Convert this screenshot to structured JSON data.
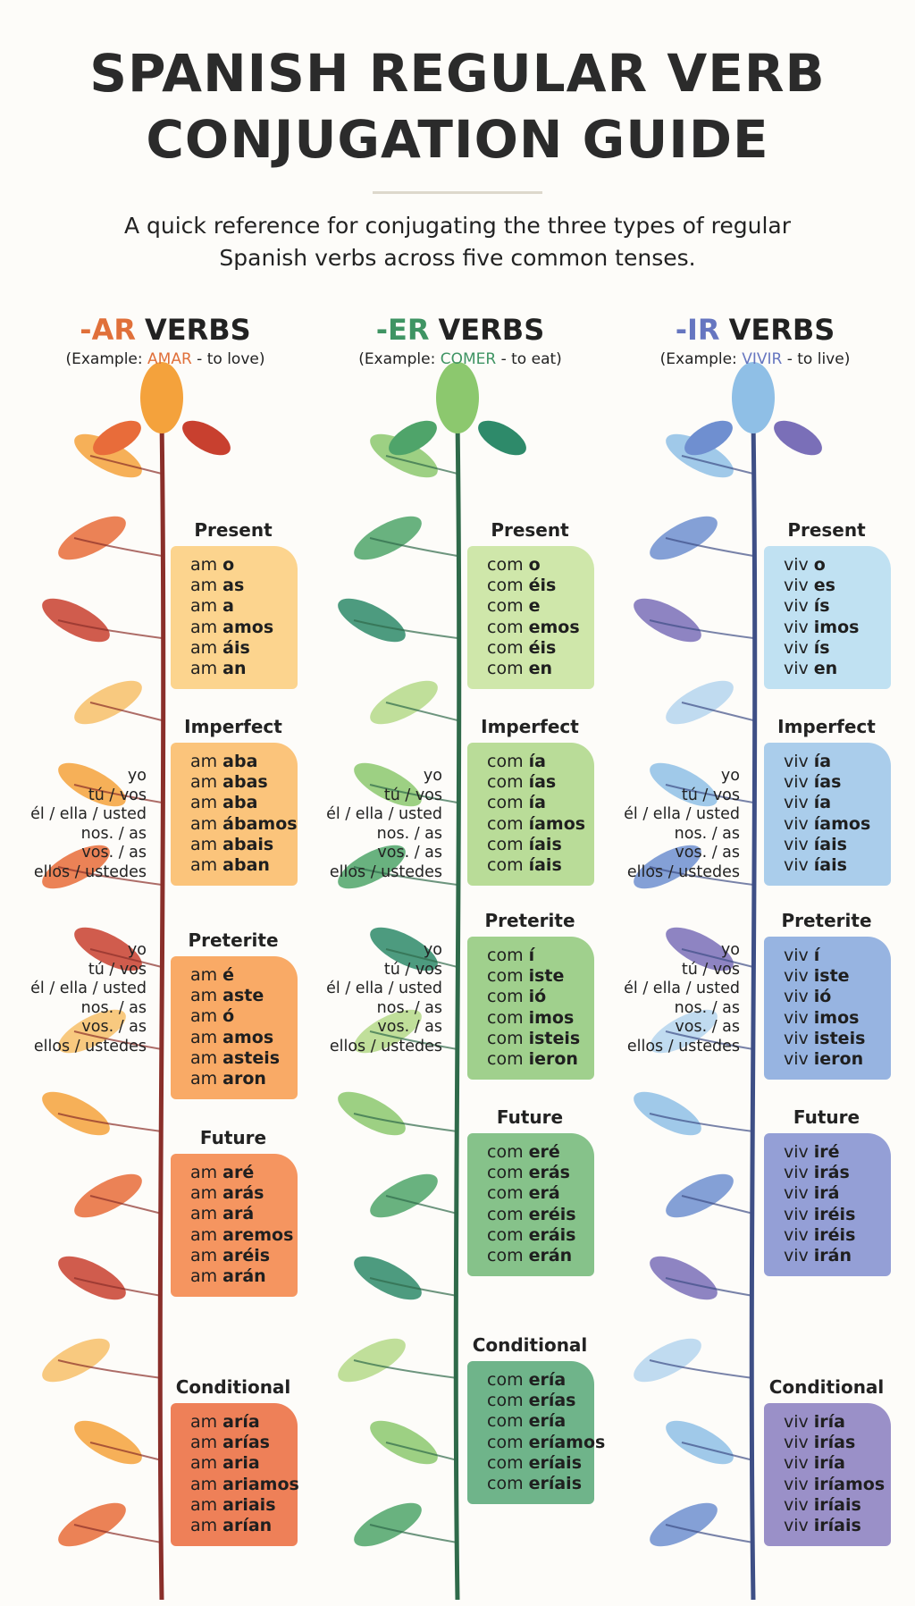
{
  "header": {
    "title_lines": [
      "SPANISH REGULAR VERB",
      "CONJUGATION GUIDE"
    ],
    "subtitle_lines": [
      "A quick reference for conjugating the three types of regular",
      "Spanish verbs across five common tenses."
    ]
  },
  "columns": [
    {
      "suffix": "-AR",
      "word": "VERBS",
      "example": {
        "before": "(Example: ",
        "verb": "AMAR",
        "after": " - to love)"
      },
      "pronoun_sets": [
        [
          "yo",
          "tú / vos",
          "él / ella / usted",
          "nos. / as",
          "vos. / as",
          "ellos / ustedes"
        ],
        [
          "yo",
          "tú / vos",
          "él / ella / usted",
          "nos. / as",
          "vos. / as",
          "ellos / ustedes"
        ]
      ],
      "tenses": [
        {
          "name": "Present",
          "forms": [
            [
              "am",
              "o"
            ],
            [
              "am",
              "as"
            ],
            [
              "am",
              "a"
            ],
            [
              "am",
              "amos"
            ],
            [
              "am",
              "áis"
            ],
            [
              "am",
              "an"
            ]
          ]
        },
        {
          "name": "Imperfect",
          "forms": [
            [
              "am",
              "aba"
            ],
            [
              "am",
              "abas"
            ],
            [
              "am",
              "aba"
            ],
            [
              "am",
              "ábamos"
            ],
            [
              "am",
              "abais"
            ],
            [
              "am",
              "aban"
            ]
          ]
        },
        {
          "name": "Preterite",
          "forms": [
            [
              "am",
              "é"
            ],
            [
              "am",
              "aste"
            ],
            [
              "am",
              "ó"
            ],
            [
              "am",
              "amos"
            ],
            [
              "am",
              "asteis"
            ],
            [
              "am",
              "aron"
            ]
          ]
        },
        {
          "name": "Future",
          "forms": [
            [
              "am",
              "aré"
            ],
            [
              "am",
              "arás"
            ],
            [
              "am",
              "ará"
            ],
            [
              "am",
              "aremos"
            ],
            [
              "am",
              "aréis"
            ],
            [
              "am",
              "arán"
            ]
          ]
        },
        {
          "name": "Conditional",
          "forms": [
            [
              "am",
              "aría"
            ],
            [
              "am",
              "arías"
            ],
            [
              "am",
              "aria"
            ],
            [
              "am",
              "ariamos"
            ],
            [
              "am",
              "ariais"
            ],
            [
              "am",
              "arían"
            ]
          ]
        }
      ]
    },
    {
      "suffix": "-ER",
      "word": "VERBS",
      "example": {
        "before": "(Example: ",
        "verb": "COMER",
        "after": " - to eat)"
      },
      "pronoun_sets": [
        [
          "yo",
          "tú / vos",
          "él / ella / usted",
          "nos. / as",
          "vos. / as",
          "ellos / ustedes"
        ],
        [
          "yo",
          "tú / vos",
          "él / ella / usted",
          "nos. / as",
          "vos. / as",
          "ellos / ustedes"
        ]
      ],
      "tenses": [
        {
          "name": "Present",
          "forms": [
            [
              "com",
              "o"
            ],
            [
              "com",
              "éis"
            ],
            [
              "com",
              "e"
            ],
            [
              "com",
              "emos"
            ],
            [
              "com",
              "éis"
            ],
            [
              "com",
              "en"
            ]
          ]
        },
        {
          "name": "Imperfect",
          "forms": [
            [
              "com",
              "ía"
            ],
            [
              "com",
              "ías"
            ],
            [
              "com",
              "ía"
            ],
            [
              "com",
              "íamos"
            ],
            [
              "com",
              "íais"
            ],
            [
              "com",
              "íais"
            ]
          ]
        },
        {
          "name": "Preterite",
          "forms": [
            [
              "com",
              "í"
            ],
            [
              "com",
              "iste"
            ],
            [
              "com",
              "ió"
            ],
            [
              "com",
              "imos"
            ],
            [
              "com",
              "isteis"
            ],
            [
              "com",
              "ieron"
            ]
          ]
        },
        {
          "name": "Future",
          "forms": [
            [
              "com",
              "eré"
            ],
            [
              "com",
              "erás"
            ],
            [
              "com",
              "erá"
            ],
            [
              "com",
              "eréis"
            ],
            [
              "com",
              "eráis"
            ],
            [
              "com",
              "erán"
            ]
          ]
        },
        {
          "name": "Conditional",
          "forms": [
            [
              "com",
              "ería"
            ],
            [
              "com",
              "erías"
            ],
            [
              "com",
              "ería"
            ],
            [
              "com",
              "eríamos"
            ],
            [
              "com",
              "eríais"
            ],
            [
              "com",
              "eríais"
            ]
          ]
        }
      ]
    },
    {
      "suffix": "-IR",
      "word": "VERBS",
      "example": {
        "before": "(Example: ",
        "verb": "VIVIR",
        "after": " - to live)"
      },
      "pronoun_sets": [
        [
          "yo",
          "tú / vos",
          "él / ella / usted",
          "nos. / as",
          "vos. / as",
          "ellos / ustedes"
        ],
        [
          "yo",
          "tú / vos",
          "él / ella / usted",
          "nos. / as",
          "vos. / as",
          "ellos / ustedes"
        ]
      ],
      "tenses": [
        {
          "name": "Present",
          "forms": [
            [
              "viv",
              "o"
            ],
            [
              "viv",
              "es"
            ],
            [
              "viv",
              "ís"
            ],
            [
              "viv",
              "imos"
            ],
            [
              "viv",
              "ís"
            ],
            [
              "viv",
              "en"
            ]
          ]
        },
        {
          "name": "Imperfect",
          "forms": [
            [
              "viv",
              "ía"
            ],
            [
              "viv",
              "ías"
            ],
            [
              "viv",
              "ía"
            ],
            [
              "viv",
              "íamos"
            ],
            [
              "viv",
              "íais"
            ],
            [
              "viv",
              "íais"
            ]
          ]
        },
        {
          "name": "Preterite",
          "forms": [
            [
              "viv",
              "í"
            ],
            [
              "viv",
              "iste"
            ],
            [
              "viv",
              "ió"
            ],
            [
              "viv",
              "imos"
            ],
            [
              "viv",
              "isteis"
            ],
            [
              "viv",
              "ieron"
            ]
          ]
        },
        {
          "name": "Future",
          "forms": [
            [
              "viv",
              "iré"
            ],
            [
              "viv",
              "irás"
            ],
            [
              "viv",
              "irá"
            ],
            [
              "viv",
              "iréis"
            ],
            [
              "viv",
              "iréis"
            ],
            [
              "viv",
              "irán"
            ]
          ]
        },
        {
          "name": "Conditional",
          "forms": [
            [
              "viv",
              "iría"
            ],
            [
              "viv",
              "irías"
            ],
            [
              "viv",
              "iría"
            ],
            [
              "viv",
              "iríamos"
            ],
            [
              "viv",
              "iríais"
            ],
            [
              "viv",
              "iríais"
            ]
          ]
        }
      ]
    }
  ]
}
